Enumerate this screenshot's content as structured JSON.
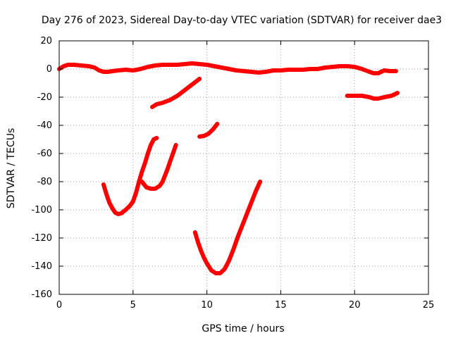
{
  "chart_data": {
    "type": "line",
    "title": "Day 276 of 2023, Sidereal Day-to-day VTEC variation (SDTVAR) for receiver dae3",
    "xlabel": "GPS time / hours",
    "ylabel": "SDTVAR / TECUs",
    "xlim": [
      0,
      25
    ],
    "ylim": [
      -160,
      20
    ],
    "xticks": [
      0,
      5,
      10,
      15,
      20,
      25
    ],
    "yticks": [
      20,
      0,
      -20,
      -40,
      -60,
      -80,
      -100,
      -120,
      -140,
      -160
    ],
    "grid": true,
    "color": "#ff0000",
    "series": [
      {
        "name": "arc-top-1",
        "x": [
          0,
          0.3,
          0.6,
          1.0,
          1.5,
          2.0,
          2.4,
          2.7,
          3.0,
          3.3,
          3.6,
          4.0,
          4.5,
          5.0,
          5.5,
          6.0,
          6.5,
          7.0,
          7.5,
          8.0,
          8.5,
          9.0,
          9.5,
          10.0,
          10.5,
          11.0,
          11.5,
          12.0,
          12.5,
          13.0,
          13.5,
          14.0,
          14.5,
          15.0,
          15.5,
          16.0,
          16.5,
          17.0,
          17.5,
          18.0,
          18.5,
          19.0,
          19.5,
          20.0,
          20.5,
          21.0,
          21.3,
          21.6,
          22.0,
          22.4,
          22.8
        ],
        "y": [
          0,
          2,
          3,
          3,
          2.5,
          2,
          1,
          -1,
          -2,
          -2,
          -1.5,
          -1,
          -0.5,
          -1,
          0,
          1.5,
          2.5,
          3,
          3,
          3,
          3.5,
          4,
          3.5,
          3,
          2,
          1,
          0,
          -1,
          -1.5,
          -2,
          -2.5,
          -2,
          -1,
          -1,
          -0.5,
          -0.5,
          -0.5,
          0,
          0,
          1,
          1.5,
          2,
          2,
          1.5,
          0,
          -2,
          -3,
          -3,
          -1,
          -1.5,
          -1.5
        ]
      },
      {
        "name": "arc-right-1",
        "x": [
          19.5,
          20.0,
          20.5,
          21.0,
          21.3,
          21.6,
          22.0,
          22.5,
          22.9
        ],
        "y": [
          -19,
          -19,
          -19,
          -20,
          -21,
          -21,
          -20,
          -19,
          -17
        ]
      },
      {
        "name": "arc-mid-1",
        "x": [
          6.3,
          6.6,
          7.0,
          7.5,
          8.0,
          8.5,
          9.0,
          9.5
        ],
        "y": [
          -27,
          -25,
          -24,
          -22,
          -19,
          -15,
          -11,
          -7
        ]
      },
      {
        "name": "arc-mid-2",
        "x": [
          9.5,
          9.8,
          10.1,
          10.4,
          10.7
        ],
        "y": [
          -48,
          -47.5,
          -46,
          -43,
          -39
        ]
      },
      {
        "name": "arc-v-1",
        "x": [
          3.0,
          3.2,
          3.4,
          3.6,
          3.8,
          4.0,
          4.2,
          4.5,
          4.8,
          5.0,
          5.2,
          5.4,
          5.6,
          5.8,
          6.0,
          6.2,
          6.4,
          6.6
        ],
        "y": [
          -82,
          -89,
          -95,
          -99,
          -102,
          -103,
          -102.5,
          -100,
          -97,
          -94,
          -88,
          -80,
          -73,
          -67,
          -60,
          -54,
          -50,
          -49
        ]
      },
      {
        "name": "arc-v-2",
        "x": [
          5.6,
          5.9,
          6.2,
          6.5,
          6.8,
          7.0,
          7.3,
          7.6,
          7.9
        ],
        "y": [
          -80,
          -84,
          -85,
          -85,
          -83,
          -80,
          -72,
          -63,
          -54
        ]
      },
      {
        "name": "arc-v-3",
        "x": [
          9.2,
          9.4,
          9.6,
          9.8,
          10.0,
          10.3,
          10.6,
          10.9,
          11.2,
          11.5,
          11.8,
          12.1,
          12.4,
          12.7,
          13.0,
          13.3,
          13.6
        ],
        "y": [
          -116,
          -123,
          -129,
          -134,
          -138,
          -143,
          -145,
          -145,
          -142,
          -136,
          -128,
          -119,
          -111,
          -103,
          -95,
          -87,
          -80
        ]
      }
    ]
  }
}
